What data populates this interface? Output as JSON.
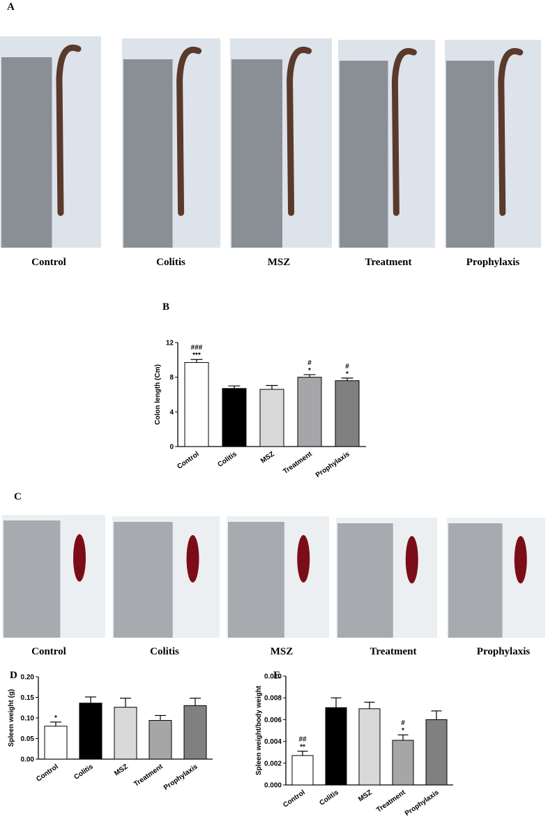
{
  "panel_labels": [
    "A",
    "B",
    "C",
    "D",
    "E"
  ],
  "colon_photos": [
    "Control",
    "Colitis",
    "MSZ",
    "Treatment",
    "Prophylaxis"
  ],
  "spleen_photos": [
    "Control",
    "Colitis",
    "MSZ",
    "Treatment",
    "Prophylaxis"
  ],
  "chart_data": [
    {
      "type": "bar",
      "y_label": "Colon length (Cm)",
      "categories": [
        "Control",
        "Colitis",
        "MSZ",
        "Treatment",
        "Prophylaxis"
      ],
      "values": [
        9.7,
        6.7,
        6.6,
        8.0,
        7.6
      ],
      "errors": [
        0.35,
        0.3,
        0.45,
        0.3,
        0.3
      ],
      "annotations": [
        [
          "###",
          "***"
        ],
        null,
        null,
        [
          "#",
          "*"
        ],
        [
          "#",
          "*"
        ]
      ],
      "colors": [
        "#ffffff",
        "#000000",
        "#d9d9d9",
        "#a6a6a8",
        "#808080"
      ],
      "ylim": [
        0,
        12
      ],
      "yticks": [
        0,
        4,
        8,
        12
      ]
    },
    {
      "type": "bar",
      "y_label": "Spleen weight (g)",
      "categories": [
        "Control",
        "Colitis",
        "MSZ",
        "Treatment",
        "Prophylaxis"
      ],
      "values": [
        0.08,
        0.136,
        0.126,
        0.094,
        0.13
      ],
      "errors": [
        0.01,
        0.015,
        0.022,
        0.012,
        0.018
      ],
      "annotations": [
        [
          "*"
        ],
        null,
        null,
        null,
        null
      ],
      "colors": [
        "#ffffff",
        "#000000",
        "#d9d9d9",
        "#a6a6a8",
        "#808080"
      ],
      "ylim": [
        0,
        0.2
      ],
      "yticks": [
        {
          "value": 0,
          "label": "0.00"
        },
        {
          "value": 0.05,
          "label": "0.05"
        },
        {
          "value": 0.1,
          "label": "0.10"
        },
        {
          "value": 0.15,
          "label": "0.15"
        },
        {
          "value": 0.2,
          "label": "0.20"
        }
      ]
    },
    {
      "type": "bar",
      "y_label": "Spleen weight/body weight",
      "categories": [
        "Control",
        "Colitis",
        "MSZ",
        "Treatment",
        "Prophylaxis"
      ],
      "values": [
        0.0027,
        0.0071,
        0.007,
        0.0041,
        0.006
      ],
      "errors": [
        0.0004,
        0.0009,
        0.0006,
        0.0005,
        0.0008
      ],
      "annotations": [
        [
          "##",
          "**"
        ],
        null,
        null,
        [
          "#",
          "*"
        ],
        null
      ],
      "colors": [
        "#ffffff",
        "#000000",
        "#d9d9d9",
        "#a6a6a8",
        "#808080"
      ],
      "ylim": [
        0,
        0.01
      ],
      "yticks": [
        {
          "value": 0,
          "label": "0.000"
        },
        {
          "value": 0.002,
          "label": "0.002"
        },
        {
          "value": 0.004,
          "label": "0.004"
        },
        {
          "value": 0.006,
          "label": "0.006"
        },
        {
          "value": 0.008,
          "label": "0.008"
        },
        {
          "value": 0.01,
          "label": "0.010"
        }
      ]
    }
  ]
}
